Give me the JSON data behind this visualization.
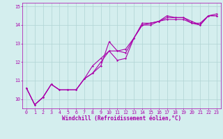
{
  "xlabel": "Windchill (Refroidissement éolien,°C)",
  "background_color": "#d4eeee",
  "line_color": "#aa00aa",
  "grid_color": "#b0d4d4",
  "xlim": [
    -0.5,
    23.5
  ],
  "ylim": [
    9.5,
    15.2
  ],
  "yticks": [
    10,
    11,
    12,
    13,
    14,
    15
  ],
  "xticks": [
    0,
    1,
    2,
    3,
    4,
    5,
    6,
    7,
    8,
    9,
    10,
    11,
    12,
    13,
    14,
    15,
    16,
    17,
    18,
    19,
    20,
    21,
    22,
    23
  ],
  "line1_x": [
    0,
    1,
    2,
    3,
    4,
    5,
    6,
    7,
    8,
    9,
    10,
    11,
    12,
    13,
    14,
    15,
    16,
    17,
    18,
    19,
    20,
    21,
    22,
    23
  ],
  "line1_y": [
    10.6,
    9.7,
    10.1,
    10.8,
    10.5,
    10.5,
    10.5,
    11.1,
    11.4,
    12.0,
    12.6,
    12.1,
    12.2,
    13.3,
    14.0,
    14.0,
    14.2,
    14.3,
    14.3,
    14.3,
    14.1,
    14.1,
    14.5,
    14.5
  ],
  "line2_x": [
    0,
    1,
    2,
    3,
    4,
    5,
    6,
    7,
    8,
    9,
    10,
    11,
    12,
    13,
    14,
    15,
    16,
    17,
    18,
    19,
    20,
    21,
    22,
    23
  ],
  "line2_y": [
    10.6,
    9.7,
    10.1,
    10.8,
    10.5,
    10.5,
    10.5,
    11.1,
    11.4,
    11.8,
    13.1,
    12.6,
    12.5,
    13.3,
    14.0,
    14.1,
    14.2,
    14.4,
    14.4,
    14.4,
    14.1,
    14.0,
    14.5,
    14.5
  ],
  "line3_x": [
    0,
    1,
    2,
    3,
    4,
    5,
    6,
    7,
    8,
    9,
    10,
    11,
    12,
    13,
    14,
    15,
    16,
    17,
    18,
    19,
    20,
    21,
    22,
    23
  ],
  "line3_y": [
    10.6,
    9.7,
    10.1,
    10.8,
    10.5,
    10.5,
    10.5,
    11.1,
    11.8,
    12.2,
    12.6,
    12.6,
    12.7,
    13.3,
    14.1,
    14.1,
    14.2,
    14.5,
    14.4,
    14.4,
    14.2,
    14.0,
    14.5,
    14.6
  ],
  "marker": "D",
  "marker_size": 1.5,
  "linewidth": 0.8,
  "tick_label_fontsize": 4.8,
  "xlabel_fontsize": 5.5
}
